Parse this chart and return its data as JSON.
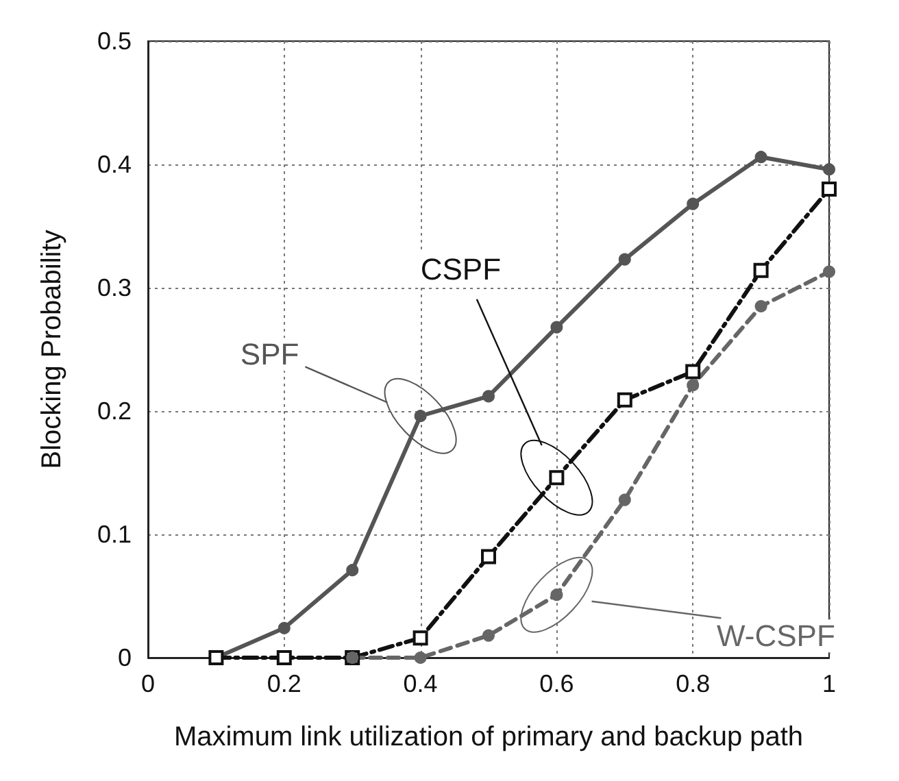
{
  "chart_data": {
    "type": "line",
    "xlabel": "Maximum link utilization of primary and backup path",
    "ylabel": "Blocking Probability",
    "x": [
      0.1,
      0.2,
      0.3,
      0.4,
      0.5,
      0.6,
      0.7,
      0.8,
      0.9,
      1.0
    ],
    "series": [
      {
        "name": "SPF",
        "color": "#555555",
        "marker": "circle",
        "line_style": "solid",
        "values": [
          0,
          0.024,
          0.071,
          0.196,
          0.212,
          0.268,
          0.323,
          0.368,
          0.406,
          0.396
        ]
      },
      {
        "name": "CSPF",
        "color": "#111111",
        "marker": "square",
        "line_style": "dashdot",
        "values": [
          0,
          0,
          0,
          0.016,
          0.082,
          0.146,
          0.209,
          0.232,
          0.314,
          0.38
        ]
      },
      {
        "name": "W-CSPF",
        "color": "#666666",
        "marker": "circle",
        "line_style": "dashed",
        "x": [
          0.3,
          0.4,
          0.5,
          0.6,
          0.7,
          0.8,
          0.9,
          1.0
        ],
        "values": [
          0,
          0,
          0.018,
          0.051,
          0.128,
          0.221,
          0.285,
          0.313
        ]
      }
    ],
    "xlim": [
      0,
      1
    ],
    "xticks": [
      0,
      0.2,
      0.4,
      0.6,
      0.8,
      1
    ],
    "ylim": [
      0,
      0.5
    ],
    "yticks": [
      0,
      0.1,
      0.2,
      0.3,
      0.4,
      0.5
    ],
    "grid": true,
    "legend": false
  }
}
